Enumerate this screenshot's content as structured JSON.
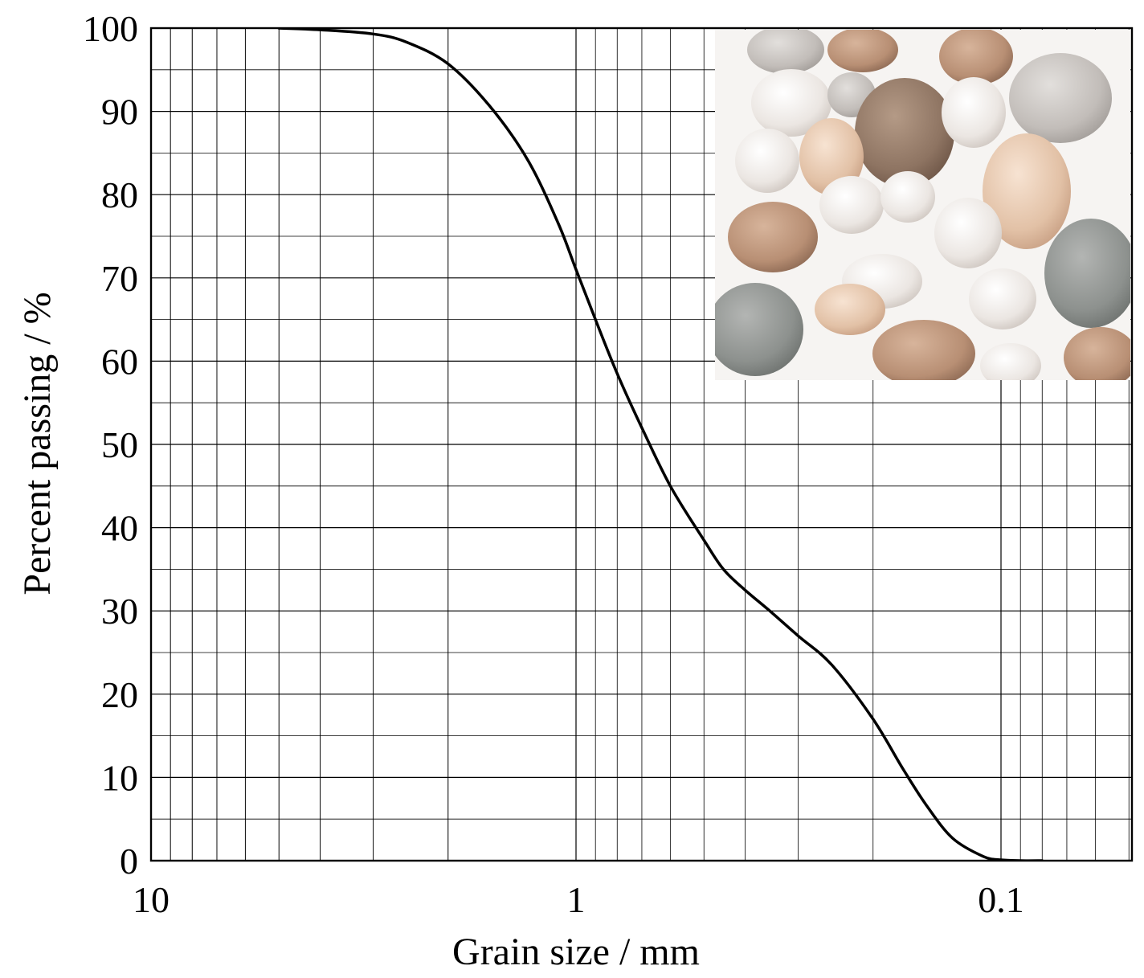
{
  "chart_data": {
    "type": "line",
    "x_scale": "log",
    "x_reversed": true,
    "xlim": [
      10,
      0.07
    ],
    "ylim": [
      0,
      100
    ],
    "xlabel": "Grain size / mm",
    "ylabel": "Percent passing / %",
    "x_ticks": [
      10,
      1,
      0.1
    ],
    "x_tick_labels": [
      "10",
      "1",
      "0.1"
    ],
    "y_ticks": [
      0,
      10,
      20,
      30,
      40,
      50,
      60,
      70,
      80,
      90,
      100
    ],
    "y_tick_labels": [
      "0",
      "10",
      "20",
      "30",
      "40",
      "50",
      "60",
      "70",
      "80",
      "90",
      "100"
    ],
    "grid": true,
    "minor_grid": true,
    "series": [
      {
        "color": "#000000",
        "x": [
          5.0,
          4.0,
          3.0,
          2.5,
          2.0,
          1.6,
          1.3,
          1.1,
          1.0,
          0.9,
          0.8,
          0.7,
          0.6,
          0.5,
          0.45,
          0.4,
          0.35,
          0.3,
          0.25,
          0.2,
          0.17,
          0.15,
          0.13,
          0.11,
          0.1,
          0.09,
          0.08
        ],
        "y": [
          100,
          99.8,
          99.3,
          98.3,
          95.7,
          90.7,
          84.2,
          76.5,
          71.0,
          65.0,
          58.5,
          52.0,
          45.0,
          38.5,
          35.0,
          32.5,
          30.0,
          27.0,
          23.5,
          17.0,
          11.0,
          6.7,
          2.7,
          0.5,
          0.1,
          0.0,
          0.0
        ]
      }
    ],
    "inset": {
      "type": "photo",
      "subject": "sand-grains",
      "position": "top-right"
    }
  }
}
